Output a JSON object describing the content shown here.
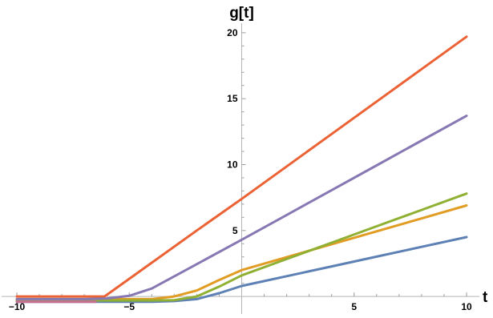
{
  "chart_data": {
    "type": "line",
    "xlabel": "t",
    "ylabel": "g[t]",
    "xlim": [
      -10,
      10
    ],
    "ylim": [
      -0.6,
      20.6
    ],
    "x_ticks": [
      {
        "value": -10,
        "label": "-10"
      },
      {
        "value": -5,
        "label": "-5"
      },
      {
        "value": 5,
        "label": "5"
      },
      {
        "value": 10,
        "label": "10"
      }
    ],
    "y_ticks": [
      {
        "value": 5,
        "label": "5"
      },
      {
        "value": 10,
        "label": "10"
      },
      {
        "value": 15,
        "label": "15"
      },
      {
        "value": 20,
        "label": "20"
      }
    ],
    "grid": false,
    "series": [
      {
        "color": "#5E81B5",
        "x": [
          -10,
          -4,
          -3,
          -2,
          -1,
          0,
          1,
          2,
          4,
          6,
          8,
          10
        ],
        "y": [
          -0.4,
          -0.4,
          -0.35,
          -0.2,
          0.25,
          0.8,
          1.17,
          1.54,
          2.28,
          3.02,
          3.76,
          4.5
        ]
      },
      {
        "color": "#E19C24",
        "x": [
          -10,
          -4,
          -3,
          -2,
          -1,
          0,
          2,
          4,
          6,
          8,
          10
        ],
        "y": [
          -0.2,
          -0.2,
          0.0,
          0.45,
          1.25,
          2.0,
          2.98,
          3.96,
          4.94,
          5.92,
          6.9
        ]
      },
      {
        "color": "#8FB032",
        "x": [
          -10,
          -4,
          -3,
          -2,
          -1,
          0,
          2,
          4,
          6,
          8,
          10
        ],
        "y": [
          -0.3,
          -0.3,
          -0.28,
          0.0,
          0.75,
          1.6,
          2.84,
          4.08,
          5.32,
          6.56,
          7.8
        ]
      },
      {
        "color": "#EB6235",
        "x": [
          -10,
          -6.1,
          -4,
          -2,
          0,
          2,
          4,
          6,
          8,
          10
        ],
        "y": [
          0.0,
          0.0,
          2.56,
          5.0,
          7.4,
          9.86,
          12.32,
          14.78,
          17.24,
          19.7
        ]
      },
      {
        "color": "#8778B3",
        "x": [
          -10,
          -7,
          -6,
          -5,
          -4,
          -2,
          0,
          2,
          4,
          6,
          8,
          10
        ],
        "y": [
          -0.2,
          -0.2,
          -0.15,
          0.05,
          0.6,
          2.45,
          4.3,
          6.18,
          8.06,
          9.94,
          11.82,
          13.7
        ]
      },
      {
        "color": "#C56E91",
        "x": [
          -10,
          -6.5
        ],
        "y": [
          -0.4,
          -0.4
        ]
      }
    ]
  }
}
